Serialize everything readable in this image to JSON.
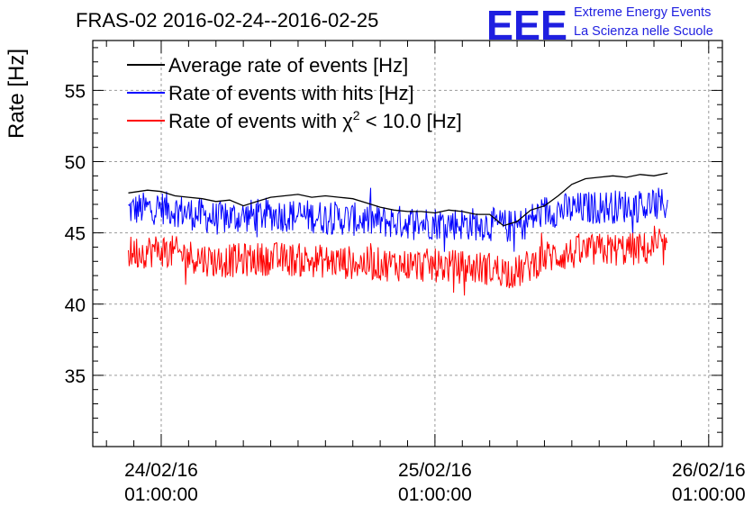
{
  "chart_data": {
    "type": "line",
    "title": "FRAS-02 2016-02-24--2016-02-25",
    "ylabel": "Rate [Hz]",
    "xlabel": "",
    "ylim": [
      30,
      58.5
    ],
    "xlim_days": [
      -0.25,
      2.05
    ],
    "grid": true,
    "legend_position": "top-left",
    "y_ticks": [
      35,
      40,
      45,
      50,
      55
    ],
    "x_ticks": [
      {
        "day": 0,
        "date": "24/02/16",
        "time": "01:00:00"
      },
      {
        "day": 1,
        "date": "25/02/16",
        "time": "01:00:00"
      },
      {
        "day": 2,
        "date": "26/02/16",
        "time": "01:00:00"
      }
    ],
    "series": [
      {
        "name": "Average rate of events [Hz]",
        "color": "#000000",
        "x_days": [
          -0.12,
          -0.05,
          0.0,
          0.05,
          0.1,
          0.15,
          0.2,
          0.25,
          0.3,
          0.35,
          0.4,
          0.45,
          0.5,
          0.55,
          0.6,
          0.65,
          0.7,
          0.75,
          0.8,
          0.85,
          0.9,
          0.95,
          1.0,
          1.05,
          1.1,
          1.15,
          1.2,
          1.25,
          1.3,
          1.35,
          1.4,
          1.45,
          1.5,
          1.55,
          1.6,
          1.65,
          1.7,
          1.75,
          1.8,
          1.85
        ],
        "values": [
          47.8,
          48.0,
          47.9,
          47.6,
          47.5,
          47.4,
          47.2,
          47.3,
          46.9,
          47.2,
          47.5,
          47.6,
          47.7,
          47.5,
          47.6,
          47.5,
          47.4,
          47.1,
          46.8,
          46.6,
          46.5,
          46.5,
          46.4,
          46.6,
          46.5,
          46.3,
          46.3,
          45.5,
          45.8,
          46.6,
          46.9,
          47.6,
          48.4,
          48.8,
          48.9,
          49.0,
          48.9,
          49.1,
          49.0,
          49.2
        ],
        "label_detail": ""
      },
      {
        "name": "Rate of events with hits [Hz]",
        "color": "#0000ff",
        "base_days": [
          -0.12,
          0.0,
          0.2,
          0.4,
          0.6,
          0.8,
          1.0,
          1.2,
          1.3,
          1.4,
          1.6,
          1.85
        ],
        "base_values": [
          46.6,
          46.8,
          46.0,
          46.3,
          46.1,
          45.8,
          45.7,
          45.6,
          45.4,
          46.5,
          46.8,
          47.0
        ],
        "noise_amplitude": 1.2
      },
      {
        "name": "Rate of events with χ² < 10.0 [Hz]",
        "color": "#ff0000",
        "base_days": [
          -0.12,
          0.0,
          0.2,
          0.4,
          0.6,
          0.8,
          1.0,
          1.2,
          1.3,
          1.4,
          1.6,
          1.85
        ],
        "base_values": [
          43.6,
          43.8,
          43.0,
          43.2,
          43.0,
          42.8,
          42.7,
          42.5,
          42.2,
          43.3,
          43.8,
          43.9
        ],
        "noise_amplitude": 1.2
      }
    ]
  },
  "legend": {
    "avg": "Average rate of events [Hz]",
    "hits": "Rate of events with hits [Hz]",
    "chi_prefix": "Rate of events with ",
    "chi_symbol": "χ",
    "chi_sup": "2",
    "chi_suffix": " < 10.0 [Hz]"
  },
  "logo": {
    "mark": "EEE",
    "line1": "Extreme Energy Events",
    "line2": "La Scienza nelle Scuole",
    "color": "#1f1fe0"
  }
}
